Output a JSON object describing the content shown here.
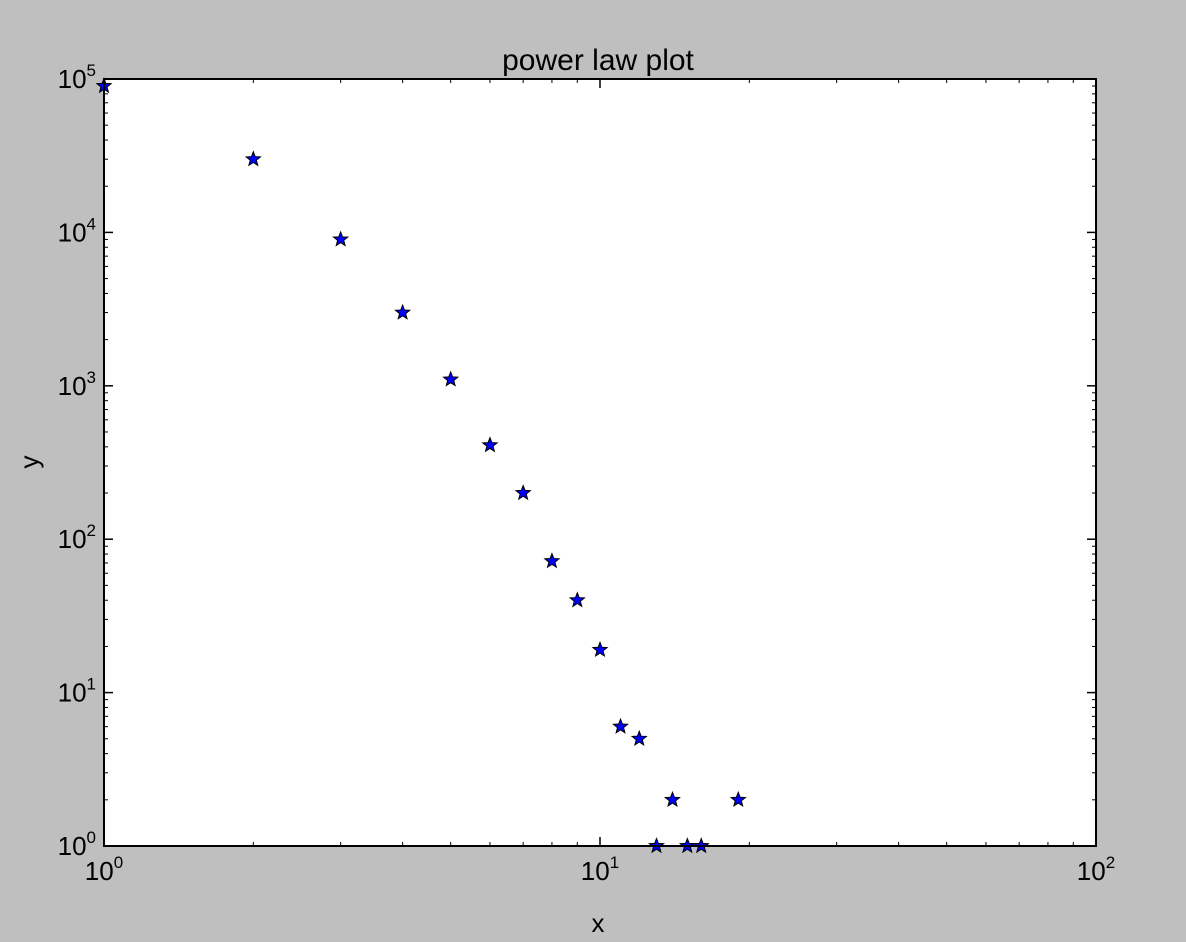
{
  "chart_data": {
    "type": "scatter",
    "title": "power law plot",
    "xlabel": "x",
    "ylabel": "y",
    "xscale": "log",
    "yscale": "log",
    "xlim": [
      1,
      100
    ],
    "ylim": [
      1,
      100000
    ],
    "x_ticks": [
      {
        "base": "10",
        "exp": "0",
        "value": 1
      },
      {
        "base": "10",
        "exp": "1",
        "value": 10
      },
      {
        "base": "10",
        "exp": "2",
        "value": 100
      }
    ],
    "y_ticks": [
      {
        "base": "10",
        "exp": "0",
        "value": 1
      },
      {
        "base": "10",
        "exp": "1",
        "value": 10
      },
      {
        "base": "10",
        "exp": "2",
        "value": 100
      },
      {
        "base": "10",
        "exp": "3",
        "value": 1000
      },
      {
        "base": "10",
        "exp": "4",
        "value": 10000
      },
      {
        "base": "10",
        "exp": "5",
        "value": 100000
      }
    ],
    "grid": false,
    "marker": "star",
    "marker_color": "#0000ff",
    "series": [
      {
        "x": [
          1,
          2,
          3,
          4,
          5,
          6,
          7,
          8,
          9,
          10,
          11,
          12,
          13,
          14,
          15,
          16,
          19
        ],
        "y": [
          90000,
          30000,
          9000,
          3000,
          1100,
          410,
          200,
          72,
          40,
          19,
          6,
          5,
          1,
          2,
          1,
          1,
          2
        ]
      }
    ]
  },
  "colors": {
    "figure_bg": "#bfbfbf",
    "axes_bg": "#ffffff",
    "marker_fill": "#0000ff",
    "marker_edge": "#000000"
  }
}
